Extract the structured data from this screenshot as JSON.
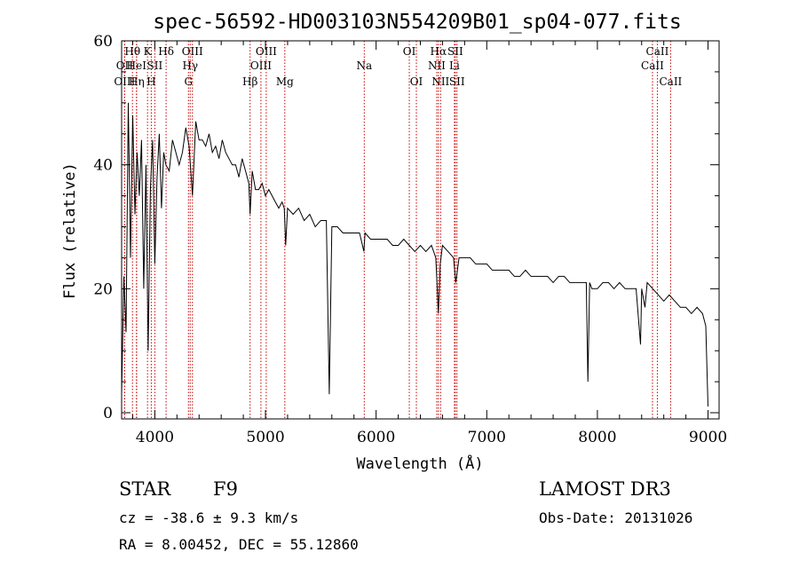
{
  "chart_data": {
    "type": "line",
    "title": "spec-56592-HD003103N554209B01_sp04-077.fits",
    "xlabel": "Wavelength (Å)",
    "ylabel": "Flux (relative)",
    "xlim": [
      3700,
      9100
    ],
    "ylim": [
      -1,
      60
    ],
    "x_ticks": [
      4000,
      5000,
      6000,
      7000,
      8000,
      9000
    ],
    "y_ticks": [
      0,
      20,
      40,
      60
    ],
    "series": [
      {
        "name": "flux",
        "x": [
          3700,
          3720,
          3740,
          3760,
          3780,
          3800,
          3820,
          3840,
          3860,
          3880,
          3900,
          3920,
          3940,
          3960,
          3980,
          4000,
          4020,
          4040,
          4060,
          4080,
          4100,
          4130,
          4160,
          4190,
          4220,
          4250,
          4280,
          4310,
          4340,
          4370,
          4400,
          4430,
          4460,
          4490,
          4520,
          4550,
          4580,
          4610,
          4640,
          4670,
          4700,
          4730,
          4760,
          4790,
          4820,
          4850,
          4861,
          4880,
          4910,
          4940,
          4970,
          5000,
          5030,
          5060,
          5090,
          5120,
          5150,
          5170,
          5183,
          5200,
          5250,
          5300,
          5350,
          5400,
          5450,
          5500,
          5550,
          5577,
          5600,
          5650,
          5700,
          5750,
          5800,
          5850,
          5890,
          5900,
          5950,
          6000,
          6050,
          6100,
          6150,
          6200,
          6250,
          6300,
          6350,
          6400,
          6450,
          6500,
          6540,
          6563,
          6580,
          6600,
          6650,
          6700,
          6720,
          6750,
          6800,
          6850,
          6900,
          6950,
          7000,
          7050,
          7100,
          7150,
          7200,
          7250,
          7300,
          7350,
          7400,
          7450,
          7500,
          7550,
          7600,
          7650,
          7700,
          7750,
          7800,
          7850,
          7900,
          7914,
          7930,
          7950,
          8000,
          8050,
          8100,
          8150,
          8200,
          8250,
          8300,
          8350,
          8390,
          8400,
          8430,
          8450,
          8500,
          8550,
          8600,
          8650,
          8700,
          8750,
          8800,
          8850,
          8900,
          8950,
          8980,
          9000
        ],
        "values": [
          3,
          22,
          13,
          50,
          25,
          48,
          32,
          42,
          35,
          44,
          20,
          40,
          10,
          36,
          44,
          24,
          38,
          45,
          33,
          42,
          40,
          39,
          44,
          42,
          40,
          42,
          46,
          43,
          35,
          47,
          44,
          44,
          43,
          45,
          42,
          43,
          41,
          44,
          42,
          41,
          40,
          40,
          38,
          41,
          39,
          37,
          32,
          39,
          36,
          36,
          37,
          35,
          36,
          35,
          34,
          33,
          34,
          33,
          27,
          33,
          32,
          33,
          31,
          32,
          30,
          31,
          31,
          3,
          30,
          30,
          29,
          29,
          29,
          29,
          26,
          29,
          28,
          28,
          28,
          28,
          27,
          27,
          28,
          27,
          26,
          27,
          26,
          27,
          25,
          16,
          24,
          27,
          26,
          25,
          21,
          25,
          25,
          25,
          24,
          24,
          24,
          23,
          23,
          23,
          23,
          22,
          22,
          23,
          22,
          22,
          22,
          22,
          21,
          22,
          22,
          21,
          21,
          21,
          21,
          5,
          21,
          20,
          20,
          21,
          21,
          20,
          21,
          20,
          20,
          20,
          11,
          20,
          17,
          21,
          20,
          19,
          18,
          19,
          18,
          17,
          17,
          16,
          17,
          16,
          14,
          1
        ]
      }
    ],
    "spectral_lines": [
      {
        "label": "OII",
        "wavelength": 3727,
        "row": 1
      },
      {
        "label": "OIII",
        "wavelength": 3727,
        "row": 2
      },
      {
        "label": "Hθ",
        "wavelength": 3798,
        "row": 0
      },
      {
        "label": "HeI",
        "wavelength": 3835,
        "row": 1
      },
      {
        "label": "Hη",
        "wavelength": 3835,
        "row": 2
      },
      {
        "label": "K",
        "wavelength": 3934,
        "row": 0
      },
      {
        "label": "SII",
        "wavelength": 4000,
        "row": 1
      },
      {
        "label": "H",
        "wavelength": 3968,
        "row": 2
      },
      {
        "label": "Hδ",
        "wavelength": 4102,
        "row": 0
      },
      {
        "label": "OIII",
        "wavelength": 4340,
        "row": 0
      },
      {
        "label": "Hγ",
        "wavelength": 4320,
        "row": 1
      },
      {
        "label": "G",
        "wavelength": 4304,
        "row": 2
      },
      {
        "label": "Hβ",
        "wavelength": 4861,
        "row": 2
      },
      {
        "label": "OIII",
        "wavelength": 5007,
        "row": 0
      },
      {
        "label": "OIII",
        "wavelength": 4959,
        "row": 1
      },
      {
        "label": "Mg",
        "wavelength": 5175,
        "row": 2
      },
      {
        "label": "Na",
        "wavelength": 5893,
        "row": 1
      },
      {
        "label": "OI",
        "wavelength": 6300,
        "row": 0
      },
      {
        "label": "OI",
        "wavelength": 6364,
        "row": 2
      },
      {
        "label": "Hα",
        "wavelength": 6563,
        "row": 0
      },
      {
        "label": "SII",
        "wavelength": 6716,
        "row": 0
      },
      {
        "label": "NII",
        "wavelength": 6548,
        "row": 1
      },
      {
        "label": "Li",
        "wavelength": 6708,
        "row": 1
      },
      {
        "label": "NII",
        "wavelength": 6583,
        "row": 2
      },
      {
        "label": "SII",
        "wavelength": 6731,
        "row": 2
      },
      {
        "label": "CaII",
        "wavelength": 8542,
        "row": 0
      },
      {
        "label": "CaII",
        "wavelength": 8498,
        "row": 1
      },
      {
        "label": "CaII",
        "wavelength": 8662,
        "row": 2
      }
    ]
  },
  "info": {
    "object_class": "STAR",
    "subclass": "F9",
    "survey": "LAMOST DR3",
    "redshift": "cz = -38.6 ± 9.3 km/s",
    "obs_date": "Obs-Date: 20131026",
    "coords": "RA =   8.00452, DEC =  55.12860"
  },
  "colors": {
    "axis": "#000000",
    "spectrum": "#000000",
    "line_marker": "#cc0000"
  }
}
